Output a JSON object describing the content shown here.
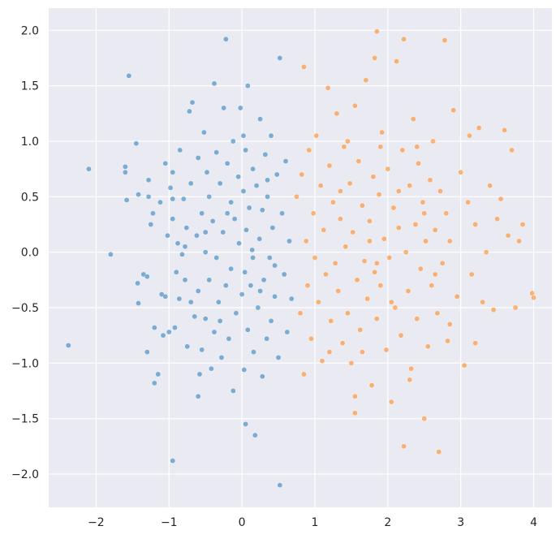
{
  "chart_data": {
    "type": "scatter",
    "title": "",
    "xlabel": "",
    "ylabel": "",
    "xlim": [
      -2.65,
      4.25
    ],
    "ylim": [
      -2.3,
      2.2
    ],
    "grid": true,
    "legend": "none",
    "x_ticks": [
      -2,
      -1,
      0,
      1,
      2,
      3,
      4
    ],
    "x_tick_labels": [
      "−2",
      "−1",
      "0",
      "1",
      "2",
      "3",
      "4"
    ],
    "y_ticks": [
      -2.0,
      -1.5,
      -1.0,
      -0.5,
      0.0,
      0.5,
      1.0,
      1.5,
      2.0
    ],
    "y_tick_labels": [
      "−2.0",
      "−1.5",
      "−1.0",
      "−0.5",
      "0.0",
      "0.5",
      "1.0",
      "1.5",
      "2.0"
    ],
    "colors": {
      "background": "#eaeaf2",
      "grid": "#ffffff",
      "series_0": "#1f77b4",
      "series_1": "#ff7f0e"
    },
    "series": [
      {
        "color": "#1f77b4",
        "points": [
          [
            -2.38,
            -0.84
          ],
          [
            -2.1,
            0.75
          ],
          [
            -1.8,
            -0.02
          ],
          [
            -1.6,
            0.77
          ],
          [
            -1.6,
            0.72
          ],
          [
            -1.55,
            1.59
          ],
          [
            -1.58,
            0.47
          ],
          [
            -1.45,
            0.98
          ],
          [
            -1.42,
            0.52
          ],
          [
            -1.43,
            -0.28
          ],
          [
            -1.42,
            -0.46
          ],
          [
            -1.35,
            -0.2
          ],
          [
            -1.3,
            -0.22
          ],
          [
            -1.28,
            0.5
          ],
          [
            -1.3,
            -0.9
          ],
          [
            -1.25,
            0.25
          ],
          [
            -1.28,
            0.65
          ],
          [
            -1.22,
            0.35
          ],
          [
            -1.2,
            -1.18
          ],
          [
            -1.2,
            -0.68
          ],
          [
            -1.15,
            -1.1
          ],
          [
            -1.12,
            0.45
          ],
          [
            -1.1,
            -0.38
          ],
          [
            -1.08,
            -0.75
          ],
          [
            -1.05,
            0.8
          ],
          [
            -1.05,
            -0.4
          ],
          [
            -1.02,
            0.15
          ],
          [
            -1.0,
            -0.72
          ],
          [
            -0.98,
            0.58
          ],
          [
            -0.95,
            0.72
          ],
          [
            -0.95,
            0.3
          ],
          [
            -0.92,
            -0.68
          ],
          [
            -0.9,
            -0.18
          ],
          [
            -0.88,
            0.08
          ],
          [
            -0.86,
            -0.42
          ],
          [
            -0.85,
            0.92
          ],
          [
            -0.82,
            -0.02
          ],
          [
            -0.8,
            0.48
          ],
          [
            -0.78,
            -0.25
          ],
          [
            -0.76,
            0.22
          ],
          [
            -0.75,
            -0.85
          ],
          [
            -0.72,
            1.27
          ],
          [
            -0.7,
            -0.45
          ],
          [
            -0.7,
            0.62
          ],
          [
            -0.68,
            1.35
          ],
          [
            -0.65,
            -0.58
          ],
          [
            -0.62,
            0.15
          ],
          [
            -0.6,
            0.85
          ],
          [
            -0.6,
            -0.35
          ],
          [
            -0.58,
            -1.1
          ],
          [
            -0.55,
            -0.88
          ],
          [
            -0.55,
            0.35
          ],
          [
            -0.52,
            1.08
          ],
          [
            -0.5,
            -0.6
          ],
          [
            -0.5,
            0.0
          ],
          [
            -0.48,
            0.72
          ],
          [
            -0.45,
            -0.25
          ],
          [
            -0.45,
            0.5
          ],
          [
            -0.42,
            -1.05
          ],
          [
            -0.4,
            0.28
          ],
          [
            -0.38,
            -0.72
          ],
          [
            -0.38,
            1.52
          ],
          [
            -0.35,
            0.9
          ],
          [
            -0.35,
            -0.05
          ],
          [
            -0.32,
            -0.45
          ],
          [
            -0.3,
            0.62
          ],
          [
            -0.28,
            -0.95
          ],
          [
            -0.26,
            0.18
          ],
          [
            -0.25,
            1.3
          ],
          [
            -0.22,
            1.92
          ],
          [
            -0.22,
            -0.3
          ],
          [
            -0.2,
            0.8
          ],
          [
            -0.18,
            -0.78
          ],
          [
            -0.15,
            0.45
          ],
          [
            -0.15,
            -0.15
          ],
          [
            -0.12,
            -1.25
          ],
          [
            -0.12,
            1.0
          ],
          [
            -0.1,
            0.3
          ],
          [
            -0.08,
            -0.55
          ],
          [
            -0.05,
            0.68
          ],
          [
            -0.04,
            0.08
          ],
          [
            -0.02,
            1.3
          ],
          [
            0.0,
            -0.38
          ],
          [
            0.02,
            1.05
          ],
          [
            0.02,
            0.55
          ],
          [
            0.03,
            -1.06
          ],
          [
            0.04,
            -0.18
          ],
          [
            0.05,
            0.92
          ],
          [
            0.06,
            0.2
          ],
          [
            0.08,
            -0.7
          ],
          [
            0.08,
            1.5
          ],
          [
            0.1,
            0.4
          ],
          [
            0.12,
            -0.3
          ],
          [
            0.14,
            0.02
          ],
          [
            0.15,
            0.75
          ],
          [
            0.16,
            -0.9
          ],
          [
            0.18,
            -1.65
          ],
          [
            0.2,
            0.6
          ],
          [
            0.22,
            -0.5
          ],
          [
            0.24,
            0.12
          ],
          [
            0.25,
            1.2
          ],
          [
            0.28,
            -1.12
          ],
          [
            0.28,
            0.38
          ],
          [
            0.3,
            -0.25
          ],
          [
            0.32,
            0.88
          ],
          [
            0.34,
            -0.78
          ],
          [
            0.35,
            0.5
          ],
          [
            0.38,
            -0.05
          ],
          [
            0.4,
            -0.62
          ],
          [
            0.4,
            1.05
          ],
          [
            0.42,
            0.22
          ],
          [
            0.45,
            -0.4
          ],
          [
            0.48,
            0.7
          ],
          [
            0.5,
            -0.95
          ],
          [
            0.52,
            1.75
          ],
          [
            0.52,
            -2.1
          ],
          [
            0.55,
            0.35
          ],
          [
            0.58,
            -0.2
          ],
          [
            0.6,
            0.82
          ],
          [
            0.62,
            -0.72
          ],
          [
            0.65,
            0.1
          ],
          [
            0.68,
            -0.42
          ],
          [
            -0.95,
            -1.88
          ],
          [
            -0.6,
            -1.3
          ],
          [
            0.05,
            -1.55
          ],
          [
            -0.95,
            0.48
          ],
          [
            -0.5,
            0.18
          ],
          [
            0.15,
            -0.05
          ],
          [
            -0.3,
            -0.62
          ],
          [
            0.35,
            0.65
          ],
          [
            -0.78,
            0.05
          ],
          [
            0.45,
            -0.12
          ],
          [
            -0.2,
            0.35
          ],
          [
            0.25,
            -0.35
          ]
        ]
      },
      {
        "color": "#ff7f0e",
        "points": [
          [
            0.75,
            0.5
          ],
          [
            0.8,
            -0.55
          ],
          [
            0.82,
            0.7
          ],
          [
            0.85,
            1.67
          ],
          [
            0.85,
            -1.1
          ],
          [
            0.88,
            0.1
          ],
          [
            0.9,
            -0.3
          ],
          [
            0.92,
            0.92
          ],
          [
            0.95,
            -0.78
          ],
          [
            0.98,
            0.35
          ],
          [
            1.0,
            -0.05
          ],
          [
            1.02,
            1.05
          ],
          [
            1.05,
            -0.45
          ],
          [
            1.08,
            0.6
          ],
          [
            1.1,
            -0.98
          ],
          [
            1.12,
            0.2
          ],
          [
            1.15,
            -0.2
          ],
          [
            1.18,
            1.48
          ],
          [
            1.2,
            0.78
          ],
          [
            1.22,
            -0.62
          ],
          [
            1.25,
            0.45
          ],
          [
            1.28,
            -0.1
          ],
          [
            1.3,
            1.25
          ],
          [
            1.32,
            -0.35
          ],
          [
            1.35,
            0.3
          ],
          [
            1.38,
            -0.82
          ],
          [
            1.4,
            0.95
          ],
          [
            1.42,
            0.05
          ],
          [
            1.45,
            -0.55
          ],
          [
            1.48,
            0.62
          ],
          [
            1.5,
            -1.0
          ],
          [
            1.52,
            0.18
          ],
          [
            1.55,
            1.32
          ],
          [
            1.55,
            -1.45
          ],
          [
            1.58,
            -0.25
          ],
          [
            1.6,
            0.82
          ],
          [
            1.62,
            -0.7
          ],
          [
            1.65,
            0.42
          ],
          [
            1.68,
            -0.08
          ],
          [
            1.7,
            1.55
          ],
          [
            1.72,
            -0.42
          ],
          [
            1.75,
            0.28
          ],
          [
            1.78,
            -1.2
          ],
          [
            1.8,
            0.68
          ],
          [
            1.82,
            -0.18
          ],
          [
            1.82,
            1.75
          ],
          [
            1.85,
            1.99
          ],
          [
            1.85,
            -0.6
          ],
          [
            1.88,
            0.52
          ],
          [
            1.9,
            -0.3
          ],
          [
            1.92,
            1.08
          ],
          [
            1.95,
            0.12
          ],
          [
            1.98,
            -0.88
          ],
          [
            2.0,
            0.75
          ],
          [
            2.02,
            -0.05
          ],
          [
            2.05,
            -1.35
          ],
          [
            2.08,
            0.4
          ],
          [
            2.1,
            -0.5
          ],
          [
            2.12,
            1.72
          ],
          [
            2.15,
            0.22
          ],
          [
            2.18,
            -0.75
          ],
          [
            2.2,
            0.92
          ],
          [
            2.22,
            1.92
          ],
          [
            2.22,
            -1.75
          ],
          [
            2.25,
            0.0
          ],
          [
            2.28,
            -0.35
          ],
          [
            2.3,
            0.6
          ],
          [
            2.32,
            -1.05
          ],
          [
            2.35,
            1.2
          ],
          [
            2.38,
            0.25
          ],
          [
            2.4,
            -0.6
          ],
          [
            2.42,
            0.8
          ],
          [
            2.45,
            -0.15
          ],
          [
            2.48,
            0.45
          ],
          [
            2.5,
            -1.5
          ],
          [
            2.52,
            0.1
          ],
          [
            2.55,
            -0.85
          ],
          [
            2.58,
            0.65
          ],
          [
            2.6,
            -0.3
          ],
          [
            2.62,
            1.0
          ],
          [
            2.65,
            0.2
          ],
          [
            2.68,
            -0.55
          ],
          [
            2.7,
            -1.8
          ],
          [
            2.72,
            0.55
          ],
          [
            2.75,
            -0.1
          ],
          [
            2.78,
            1.91
          ],
          [
            2.8,
            0.35
          ],
          [
            2.82,
            -0.8
          ],
          [
            2.85,
            0.1
          ],
          [
            2.9,
            1.28
          ],
          [
            2.95,
            -0.4
          ],
          [
            3.0,
            0.72
          ],
          [
            3.05,
            -1.02
          ],
          [
            3.1,
            0.45
          ],
          [
            3.12,
            1.05
          ],
          [
            3.15,
            -0.2
          ],
          [
            3.2,
            0.25
          ],
          [
            3.2,
            -0.82
          ],
          [
            3.25,
            1.12
          ],
          [
            3.3,
            -0.45
          ],
          [
            3.35,
            0.0
          ],
          [
            3.4,
            0.6
          ],
          [
            3.45,
            -0.52
          ],
          [
            3.5,
            0.3
          ],
          [
            3.55,
            0.48
          ],
          [
            3.6,
            1.1
          ],
          [
            3.65,
            0.15
          ],
          [
            3.7,
            0.92
          ],
          [
            3.75,
            -0.5
          ],
          [
            3.8,
            0.1
          ],
          [
            3.85,
            0.25
          ],
          [
            3.98,
            -0.37
          ],
          [
            4.0,
            -0.41
          ],
          [
            1.55,
            -1.3
          ],
          [
            1.9,
            0.95
          ],
          [
            2.3,
            -1.15
          ],
          [
            1.2,
            -0.9
          ],
          [
            2.85,
            -0.65
          ],
          [
            1.45,
            1.0
          ],
          [
            2.05,
            -0.45
          ],
          [
            1.75,
            0.1
          ],
          [
            2.5,
            0.35
          ],
          [
            1.35,
            0.55
          ],
          [
            2.65,
            -0.2
          ],
          [
            1.65,
            -0.9
          ],
          [
            2.15,
            0.55
          ],
          [
            1.85,
            -0.1
          ],
          [
            2.4,
            0.95
          ]
        ]
      }
    ]
  }
}
